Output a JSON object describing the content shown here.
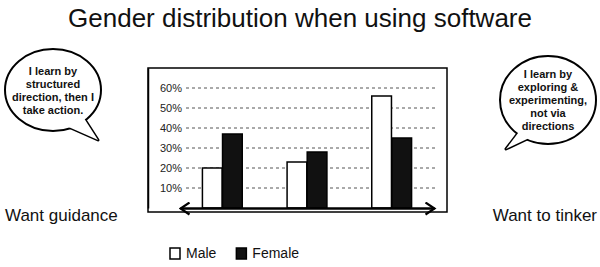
{
  "chart_data": {
    "type": "bar",
    "title": "Gender distribution when using software",
    "categories": [
      null,
      null,
      null
    ],
    "series": [
      {
        "name": "Male",
        "color": "#ffffff",
        "values": [
          20,
          23,
          56
        ]
      },
      {
        "name": "Female",
        "color": "#111111",
        "values": [
          37,
          28,
          35
        ]
      }
    ],
    "ylim": [
      0,
      70
    ],
    "yticks": [
      {
        "value": 10,
        "label": "10%"
      },
      {
        "value": 20,
        "label": "20%"
      },
      {
        "value": 30,
        "label": "30%"
      },
      {
        "value": 40,
        "label": "40%"
      },
      {
        "value": 50,
        "label": "50%"
      },
      {
        "value": 60,
        "label": "60%"
      }
    ],
    "grid": true,
    "legend": "bottom",
    "annotations": [
      {
        "lines": [
          "I learn by",
          "structured",
          "direction, then I",
          "take action."
        ],
        "caption": "Want guidance"
      },
      {
        "lines": [
          "I learn by",
          "exploring &",
          "experimenting,",
          "not via",
          "directions"
        ],
        "caption": "Want to tinker"
      }
    ]
  }
}
